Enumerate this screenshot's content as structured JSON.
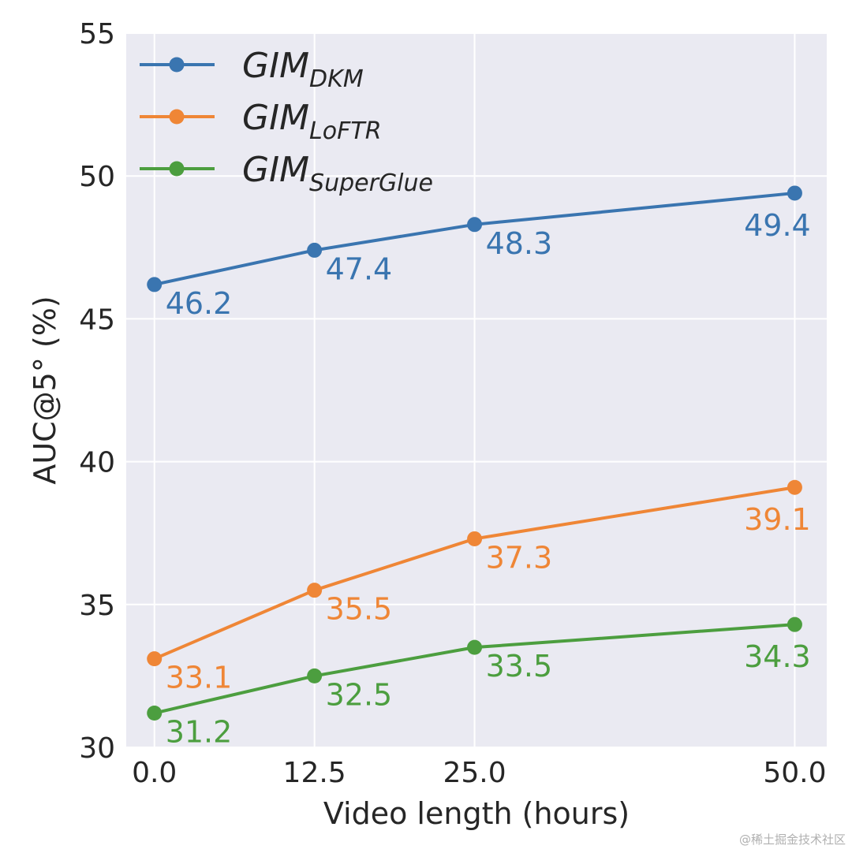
{
  "chart_data": {
    "type": "line",
    "title": "",
    "xlabel": "Video length (hours)",
    "ylabel": "AUC@5° (%)",
    "xlim": [
      -2.2,
      52.5
    ],
    "ylim": [
      30,
      55
    ],
    "x": [
      0.0,
      12.5,
      25.0,
      50.0
    ],
    "x_tick_labels": [
      "0.0",
      "12.5",
      "25.0",
      "50.0"
    ],
    "y_ticks": [
      30,
      35,
      40,
      45,
      50,
      55
    ],
    "y_tick_labels": [
      "30",
      "35",
      "40",
      "45",
      "50",
      "55"
    ],
    "grid": true,
    "legend_position": "top-left",
    "series": [
      {
        "name": "GIM_DKM",
        "legend_main": "GIM",
        "legend_sub": "DKM",
        "color": "#3a75b0",
        "values": [
          46.2,
          47.4,
          48.3,
          49.4
        ],
        "labels": [
          "46.2",
          "47.4",
          "48.3",
          "49.4"
        ]
      },
      {
        "name": "GIM_LoFTR",
        "legend_main": "GIM",
        "legend_sub": "LoFTR",
        "color": "#ef8636",
        "values": [
          33.1,
          35.5,
          37.3,
          39.1
        ],
        "labels": [
          "33.1",
          "35.5",
          "37.3",
          "39.1"
        ]
      },
      {
        "name": "GIM_SuperGlue",
        "legend_main": "GIM",
        "legend_sub": "SuperGlue",
        "color": "#4c9e3f",
        "values": [
          31.2,
          32.5,
          33.5,
          34.3
        ],
        "labels": [
          "31.2",
          "32.5",
          "33.5",
          "34.3"
        ]
      }
    ]
  },
  "watermark": "@稀土掘金技术社区"
}
